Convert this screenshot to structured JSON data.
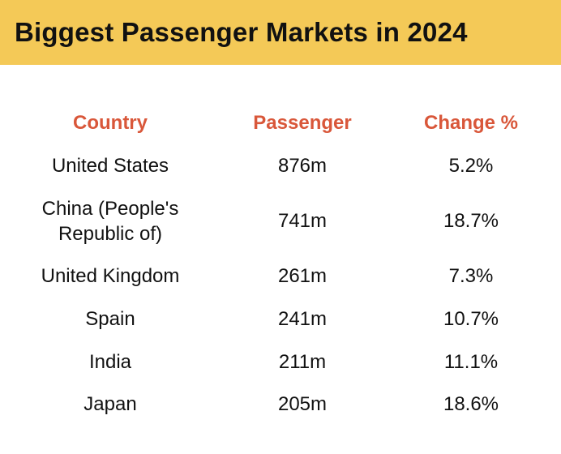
{
  "title": "Biggest Passenger Markets in 2024",
  "colors": {
    "banner": "#f4c957",
    "header_text": "#d9573a",
    "body_text": "#111111"
  },
  "chart_data": {
    "type": "table",
    "title": "Biggest Passenger Markets in 2024",
    "columns": [
      "Country",
      "Passenger",
      "Change %"
    ],
    "rows": [
      [
        "United States",
        "876m",
        "5.2%"
      ],
      [
        "China (People's Republic of)",
        "741m",
        "18.7%"
      ],
      [
        "United Kingdom",
        "261m",
        "7.3%"
      ],
      [
        "Spain",
        "241m",
        "10.7%"
      ],
      [
        "India",
        "211m",
        "11.1%"
      ],
      [
        "Japan",
        "205m",
        "18.6%"
      ]
    ]
  },
  "table": {
    "rows": [
      {
        "country_line1": "United States",
        "country_line2": "",
        "passenger": "876m",
        "change": "5.2%"
      },
      {
        "country_line1": "China (People's",
        "country_line2": "Republic of)",
        "passenger": "741m",
        "change": "18.7%"
      },
      {
        "country_line1": "United Kingdom",
        "country_line2": "",
        "passenger": "261m",
        "change": "7.3%"
      },
      {
        "country_line1": "Spain",
        "country_line2": "",
        "passenger": "241m",
        "change": "10.7%"
      },
      {
        "country_line1": "India",
        "country_line2": "",
        "passenger": "211m",
        "change": "11.1%"
      },
      {
        "country_line1": "Japan",
        "country_line2": "",
        "passenger": "205m",
        "change": "18.6%"
      }
    ]
  }
}
